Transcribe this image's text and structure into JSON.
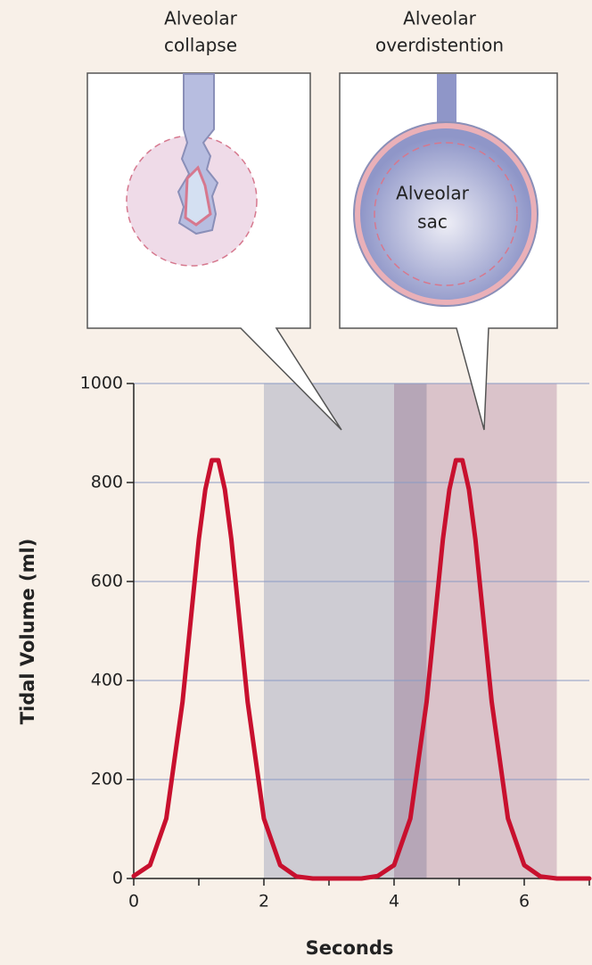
{
  "chart_data": {
    "type": "line",
    "annotations": {
      "collapse": [
        "Alveolar",
        "collapse"
      ],
      "overdistention": [
        "Alveolar",
        "overdistention"
      ],
      "sac": [
        "Alveolar",
        "sac"
      ]
    },
    "xlabel": "Seconds",
    "ylabel": "Tidal Volume (ml)",
    "x": [
      0,
      0.25,
      0.5,
      0.75,
      1.0,
      1.1,
      1.2,
      1.3,
      1.4,
      1.5,
      1.75,
      2.0,
      2.25,
      2.5,
      2.75,
      3.0,
      3.5,
      3.75,
      4.0,
      4.25,
      4.5,
      4.75,
      4.85,
      4.95,
      5.05,
      5.15,
      5.25,
      5.5,
      5.75,
      6.0,
      6.25,
      6.5,
      7.0
    ],
    "series": [
      {
        "name": "Tidal volume",
        "color": "#c8102e",
        "values": [
          5,
          27,
          121,
          357,
          685,
          786,
          845,
          845,
          786,
          685,
          357,
          121,
          27,
          4,
          0,
          0,
          0,
          5,
          27,
          121,
          357,
          685,
          786,
          845,
          845,
          786,
          685,
          357,
          121,
          27,
          4,
          0,
          0
        ]
      }
    ],
    "regions": [
      {
        "xlim": [
          2,
          4.5
        ],
        "color": "#c9d0e2"
      },
      {
        "xlim": [
          4,
          6.5
        ],
        "color": "#d9c4d6"
      }
    ],
    "xlim": [
      0,
      7
    ],
    "xticks": [
      0,
      2,
      4,
      6
    ],
    "minor_xticks": [
      1,
      3,
      5,
      7
    ],
    "ylim": [
      0,
      1000
    ],
    "yticks": [
      0,
      200,
      400,
      600,
      800,
      1000
    ],
    "grid": true
  }
}
